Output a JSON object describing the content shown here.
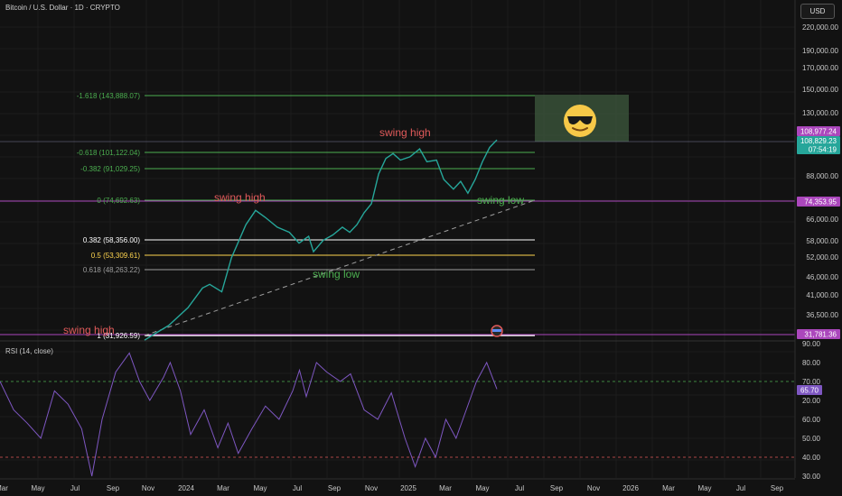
{
  "header": {
    "title": "Bitcoin / U.S. Dollar · 1D · CRYPTO",
    "currency_button": "USD"
  },
  "price_axis": {
    "ticks": [
      "220,000.00",
      "190,000.00",
      "170,000.00",
      "150,000.00",
      "130,000.00",
      "88,000.00",
      "66,000.00",
      "58,000.00",
      "52,000.00",
      "46,000.00",
      "41,000.00",
      "36,500.00"
    ],
    "badges": {
      "current": "108,977.24",
      "close": "108,829.23",
      "countdown": "07:54:19",
      "level_mid": "74,353.95",
      "level_low": "31,781.36"
    }
  },
  "fib_levels": [
    {
      "label": "-1.618 (143,888.07)",
      "color": "#4caf50"
    },
    {
      "label": "-0.618 (101,122.04)",
      "color": "#4caf50"
    },
    {
      "label": "-0.382 (91,029.25)",
      "color": "#4caf50"
    },
    {
      "label": "0 (74,692.63)",
      "color": "#4caf50"
    },
    {
      "label": "0.382 (58,356.00)",
      "color": "#ffffff"
    },
    {
      "label": "0.5 (53,309.61)",
      "color": "#ffd54f"
    },
    {
      "label": "0.618 (48,263.22)",
      "color": "#9e9e9e"
    },
    {
      "label": "1 (31,926.59)",
      "color": "#ffffff"
    }
  ],
  "annotations": {
    "swing_high_top": "swing high",
    "swing_high_mid": "swing high",
    "swing_high_left": "swing high",
    "swing_low_right": "swing low",
    "swing_low_mid": "swing low"
  },
  "rsi": {
    "label": "RSI (14, close)",
    "value_badge": "65.70",
    "ticks": [
      "90.00",
      "80.00",
      "70.00",
      "60.00",
      "50.00",
      "40.00",
      "30.00",
      "20.00"
    ]
  },
  "time_axis": [
    "Mar",
    "May",
    "Jul",
    "Sep",
    "Nov",
    "2024",
    "Mar",
    "May",
    "Jul",
    "Sep",
    "Nov",
    "2025",
    "Mar",
    "May",
    "Jul",
    "Sep",
    "Nov",
    "2026",
    "Mar",
    "May",
    "Jul",
    "Sep"
  ],
  "colors": {
    "background": "#121212",
    "fib_green": "#4caf50",
    "annotation_red": "#e05a5a",
    "annotation_green": "#4caf50",
    "rsi_line": "#7e57c2",
    "badge_purple": "#ab47bc",
    "badge_teal": "#26a69a"
  },
  "chart_data": {
    "type": "line",
    "log_scale": true,
    "yrange": [
      30000,
      230000
    ],
    "price_path": [
      [
        0,
        31000
      ],
      [
        0.05,
        32500
      ],
      [
        0.1,
        34000
      ],
      [
        0.18,
        38000
      ],
      [
        0.24,
        43000
      ],
      [
        0.27,
        44000
      ],
      [
        0.32,
        42000
      ],
      [
        0.36,
        52000
      ],
      [
        0.42,
        64000
      ],
      [
        0.46,
        70000
      ],
      [
        0.5,
        67000
      ],
      [
        0.55,
        63000
      ],
      [
        0.6,
        61000
      ],
      [
        0.64,
        57000
      ],
      [
        0.68,
        59500
      ],
      [
        0.7,
        54000
      ],
      [
        0.74,
        58000
      ],
      [
        0.78,
        60000
      ],
      [
        0.82,
        63000
      ],
      [
        0.85,
        61000
      ],
      [
        0.88,
        64000
      ],
      [
        0.91,
        69000
      ],
      [
        0.94,
        73000
      ],
      [
        0.97,
        88000
      ],
      [
        1.0,
        97000
      ],
      [
        1.03,
        100000
      ],
      [
        1.06,
        96000
      ],
      [
        1.1,
        98000
      ],
      [
        1.14,
        103000
      ],
      [
        1.17,
        95000
      ],
      [
        1.21,
        96000
      ],
      [
        1.24,
        85000
      ],
      [
        1.28,
        80000
      ],
      [
        1.31,
        84000
      ],
      [
        1.34,
        78000
      ],
      [
        1.37,
        85000
      ],
      [
        1.4,
        95000
      ],
      [
        1.43,
        104000
      ],
      [
        1.46,
        109000
      ]
    ],
    "rsi_path": [
      [
        0,
        70
      ],
      [
        0.04,
        55
      ],
      [
        0.08,
        48
      ],
      [
        0.12,
        40
      ],
      [
        0.16,
        65
      ],
      [
        0.2,
        58
      ],
      [
        0.24,
        45
      ],
      [
        0.27,
        20
      ],
      [
        0.3,
        50
      ],
      [
        0.34,
        75
      ],
      [
        0.38,
        85
      ],
      [
        0.41,
        70
      ],
      [
        0.44,
        60
      ],
      [
        0.48,
        72
      ],
      [
        0.5,
        80
      ],
      [
        0.53,
        65
      ],
      [
        0.56,
        42
      ],
      [
        0.6,
        55
      ],
      [
        0.64,
        35
      ],
      [
        0.67,
        48
      ],
      [
        0.7,
        32
      ],
      [
        0.74,
        45
      ],
      [
        0.78,
        57
      ],
      [
        0.82,
        50
      ],
      [
        0.86,
        65
      ],
      [
        0.88,
        76
      ],
      [
        0.9,
        62
      ],
      [
        0.93,
        80
      ],
      [
        0.96,
        75
      ],
      [
        1.0,
        70
      ],
      [
        1.03,
        74
      ],
      [
        1.07,
        55
      ],
      [
        1.11,
        50
      ],
      [
        1.15,
        64
      ],
      [
        1.19,
        40
      ],
      [
        1.22,
        25
      ],
      [
        1.25,
        40
      ],
      [
        1.28,
        30
      ],
      [
        1.31,
        50
      ],
      [
        1.34,
        40
      ],
      [
        1.37,
        55
      ],
      [
        1.4,
        70
      ],
      [
        1.43,
        80
      ],
      [
        1.46,
        66
      ]
    ]
  }
}
